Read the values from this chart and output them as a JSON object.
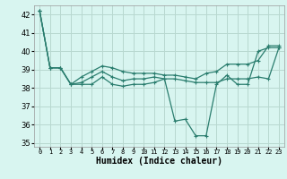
{
  "xlabel": "Humidex (Indice chaleur)",
  "x": [
    0,
    1,
    2,
    3,
    4,
    5,
    6,
    7,
    8,
    9,
    10,
    11,
    12,
    13,
    14,
    15,
    16,
    17,
    18,
    19,
    20,
    21,
    22,
    23
  ],
  "line1": [
    42.2,
    39.1,
    39.1,
    38.2,
    38.2,
    38.2,
    38.6,
    38.2,
    38.1,
    38.2,
    38.2,
    38.3,
    38.5,
    36.2,
    36.3,
    35.4,
    35.4,
    38.2,
    38.7,
    38.2,
    38.2,
    40.0,
    40.2,
    40.2
  ],
  "line2": [
    42.2,
    39.1,
    39.1,
    38.2,
    38.3,
    38.6,
    38.9,
    38.6,
    38.4,
    38.5,
    38.5,
    38.6,
    38.5,
    38.5,
    38.4,
    38.3,
    38.3,
    38.3,
    38.5,
    38.5,
    38.5,
    38.6,
    38.5,
    40.2
  ],
  "line3": [
    42.2,
    39.1,
    39.1,
    38.2,
    38.6,
    38.9,
    39.2,
    39.1,
    38.9,
    38.8,
    38.8,
    38.8,
    38.7,
    38.7,
    38.6,
    38.5,
    38.8,
    38.9,
    39.3,
    39.3,
    39.3,
    39.5,
    40.3,
    40.3
  ],
  "ylim": [
    34.8,
    42.5
  ],
  "yticks": [
    35,
    36,
    37,
    38,
    39,
    40,
    41,
    42
  ],
  "line_color": "#2a7d6e",
  "bg_color": "#d8f5f0",
  "grid_color": "#b8d8d0"
}
